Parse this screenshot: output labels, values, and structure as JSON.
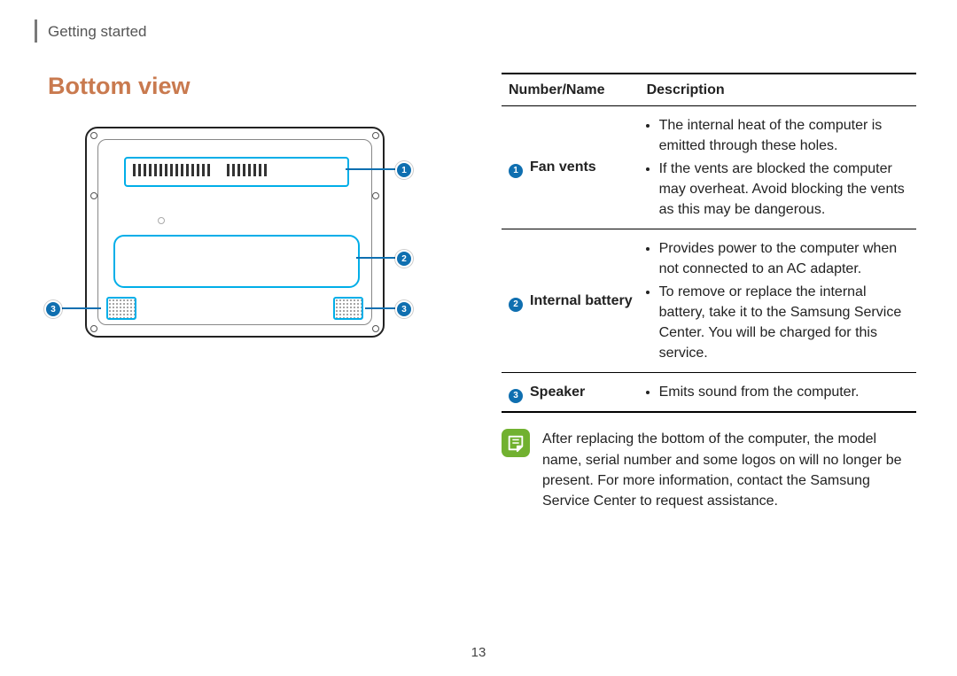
{
  "colors": {
    "heading": "#c97a4f",
    "callout": "#0f6fb0",
    "highlight_stroke": "#00aee8",
    "note_icon_bg": "#71b130",
    "text": "#222222",
    "rule": "#7a7a7a"
  },
  "header": {
    "section": "Getting started"
  },
  "heading": "Bottom view",
  "diagram": {
    "callouts": [
      {
        "n": "1",
        "label": "Fan vents"
      },
      {
        "n": "2",
        "label": "Internal battery"
      },
      {
        "n": "3",
        "label": "Speaker"
      }
    ]
  },
  "table": {
    "columns": [
      "Number/Name",
      "Description"
    ],
    "rows": [
      {
        "num": "1",
        "name": "Fan vents",
        "desc": [
          "The internal heat of the computer is emitted through these holes.",
          "If the vents are blocked the computer may overheat. Avoid blocking the vents as this may be dangerous."
        ]
      },
      {
        "num": "2",
        "name": "Internal battery",
        "desc": [
          "Provides power to the computer when not connected to an AC adapter.",
          "To remove or replace the internal battery, take it to the Samsung Service Center. You will be charged for this service."
        ]
      },
      {
        "num": "3",
        "name": "Speaker",
        "desc": [
          "Emits sound from the computer."
        ]
      }
    ]
  },
  "note": "After replacing the bottom of the computer, the model name, serial number and some logos on will no longer be present. For more information, contact the Samsung Service Center to request assistance.",
  "page_number": "13"
}
